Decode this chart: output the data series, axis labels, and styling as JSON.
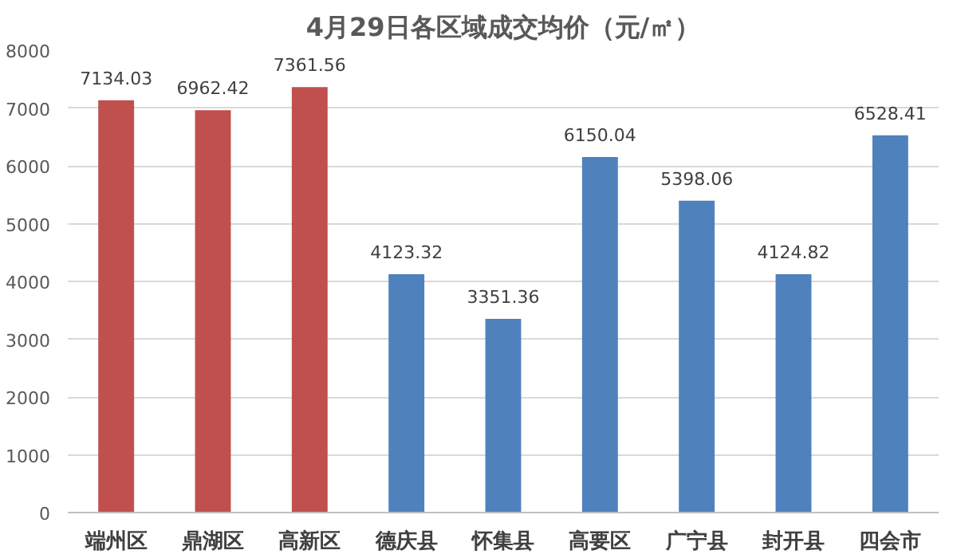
{
  "chart_data": {
    "type": "bar",
    "title": "4月29日各区域成交均价（元/㎡）",
    "categories": [
      "端州区",
      "鼎湖区",
      "高新区",
      "德庆县",
      "怀集县",
      "高要区",
      "广宁县",
      "封开县",
      "四会市"
    ],
    "values": [
      7134.03,
      6962.42,
      7361.56,
      4123.32,
      3351.36,
      6150.04,
      5398.06,
      4124.82,
      6528.41
    ],
    "colors": [
      "#c0504d",
      "#c0504d",
      "#c0504d",
      "#4f81bd",
      "#4f81bd",
      "#4f81bd",
      "#4f81bd",
      "#4f81bd",
      "#4f81bd"
    ],
    "ylim": [
      0,
      8000
    ],
    "yticks": [
      0,
      1000,
      2000,
      3000,
      4000,
      5000,
      6000,
      7000,
      8000
    ],
    "grid": "y",
    "data_labels": true
  }
}
